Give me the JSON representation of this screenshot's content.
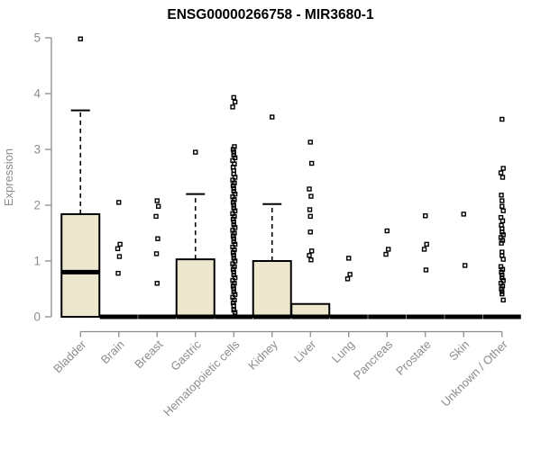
{
  "chart_data": {
    "type": "boxplot",
    "title": "ENSG00000266758 - MIR3680-1",
    "ylabel": "Expression",
    "xlabel": "",
    "ylim": [
      0,
      5
    ],
    "yticks": [
      0,
      1,
      2,
      3,
      4,
      5
    ],
    "grid": false,
    "legend": null,
    "colors": {
      "box_fill": "#ede8cd",
      "box_stroke": "#000000",
      "median": "#000000",
      "whisker": "#000000",
      "outlier": "#000000",
      "axis": "#8c8c8c",
      "tick_text": "#8c8c8c",
      "title_text": "#000000"
    },
    "categories": [
      "Bladder",
      "Brain",
      "Breast",
      "Gastric",
      "Hematopoietic cells",
      "Kidney",
      "Liver",
      "Lung",
      "Pancreas",
      "Prostate",
      "Skin",
      "Unknown / Other"
    ],
    "series": [
      {
        "category": "Bladder",
        "q1": 0,
        "median": 0.8,
        "q3": 1.84,
        "whisker_low": 0,
        "whisker_high": 3.7,
        "outliers": [
          4.98
        ]
      },
      {
        "category": "Brain",
        "q1": 0,
        "median": 0,
        "q3": 0,
        "whisker_low": 0,
        "whisker_high": 0,
        "outliers": [
          2.05,
          1.3,
          1.22,
          1.08,
          0.78
        ]
      },
      {
        "category": "Breast",
        "q1": 0,
        "median": 0,
        "q3": 0,
        "whisker_low": 0,
        "whisker_high": 0,
        "outliers": [
          2.08,
          1.98,
          1.8,
          1.4,
          1.13,
          0.6
        ]
      },
      {
        "category": "Gastric",
        "q1": 0,
        "median": 0,
        "q3": 1.03,
        "whisker_low": 0,
        "whisker_high": 2.2,
        "outliers": [
          2.95
        ]
      },
      {
        "category": "Hematopoietic cells",
        "q1": 0,
        "median": 0,
        "q3": 0,
        "whisker_low": 0,
        "whisker_high": 0,
        "outliers": [
          3.93,
          3.85,
          3.76,
          3.05,
          3.0,
          2.95,
          2.9,
          2.85,
          2.8,
          2.74,
          2.68,
          2.62,
          2.56,
          2.5,
          2.45,
          2.4,
          2.35,
          2.3,
          2.25,
          2.2,
          2.15,
          2.1,
          2.05,
          2.0,
          1.95,
          1.9,
          1.85,
          1.8,
          1.75,
          1.7,
          1.65,
          1.6,
          1.55,
          1.5,
          1.45,
          1.4,
          1.35,
          1.3,
          1.25,
          1.2,
          1.15,
          1.1,
          1.05,
          1.0,
          0.95,
          0.9,
          0.85,
          0.8,
          0.75,
          0.7,
          0.65,
          0.6,
          0.55,
          0.5,
          0.45,
          0.4,
          0.35,
          0.3,
          0.25,
          0.2,
          0.12,
          0.08
        ]
      },
      {
        "category": "Kidney",
        "q1": 0,
        "median": 0,
        "q3": 1.0,
        "whisker_low": 0,
        "whisker_high": 2.02,
        "outliers": [
          3.58
        ]
      },
      {
        "category": "Liver",
        "q1": 0,
        "median": 0,
        "q3": 0.23,
        "whisker_low": 0,
        "whisker_high": 0.23,
        "outliers": [
          3.13,
          2.75,
          2.29,
          2.16,
          1.92,
          1.8,
          1.52,
          1.18,
          1.1,
          1.02
        ]
      },
      {
        "category": "Lung",
        "q1": 0,
        "median": 0,
        "q3": 0,
        "whisker_low": 0,
        "whisker_high": 0,
        "outliers": [
          1.05,
          0.76,
          0.68
        ]
      },
      {
        "category": "Pancreas",
        "q1": 0,
        "median": 0,
        "q3": 0,
        "whisker_low": 0,
        "whisker_high": 0,
        "outliers": [
          1.54,
          1.21,
          1.12
        ]
      },
      {
        "category": "Prostate",
        "q1": 0,
        "median": 0,
        "q3": 0,
        "whisker_low": 0,
        "whisker_high": 0,
        "outliers": [
          1.81,
          1.3,
          1.21,
          0.84
        ]
      },
      {
        "category": "Skin",
        "q1": 0,
        "median": 0,
        "q3": 0,
        "whisker_low": 0,
        "whisker_high": 0,
        "outliers": [
          1.84,
          0.92
        ]
      },
      {
        "category": "Unknown / Other",
        "q1": 0,
        "median": 0,
        "q3": 0,
        "whisker_low": 0,
        "whisker_high": 0,
        "outliers": [
          3.54,
          2.66,
          2.58,
          2.5,
          2.18,
          2.08,
          1.98,
          1.9,
          1.78,
          1.72,
          1.64,
          1.58,
          1.52,
          1.47,
          1.42,
          1.37,
          1.32,
          1.16,
          1.1,
          1.03,
          0.9,
          0.85,
          0.8,
          0.75,
          0.7,
          0.65,
          0.6,
          0.55,
          0.5,
          0.45,
          0.41,
          0.3
        ]
      }
    ]
  }
}
